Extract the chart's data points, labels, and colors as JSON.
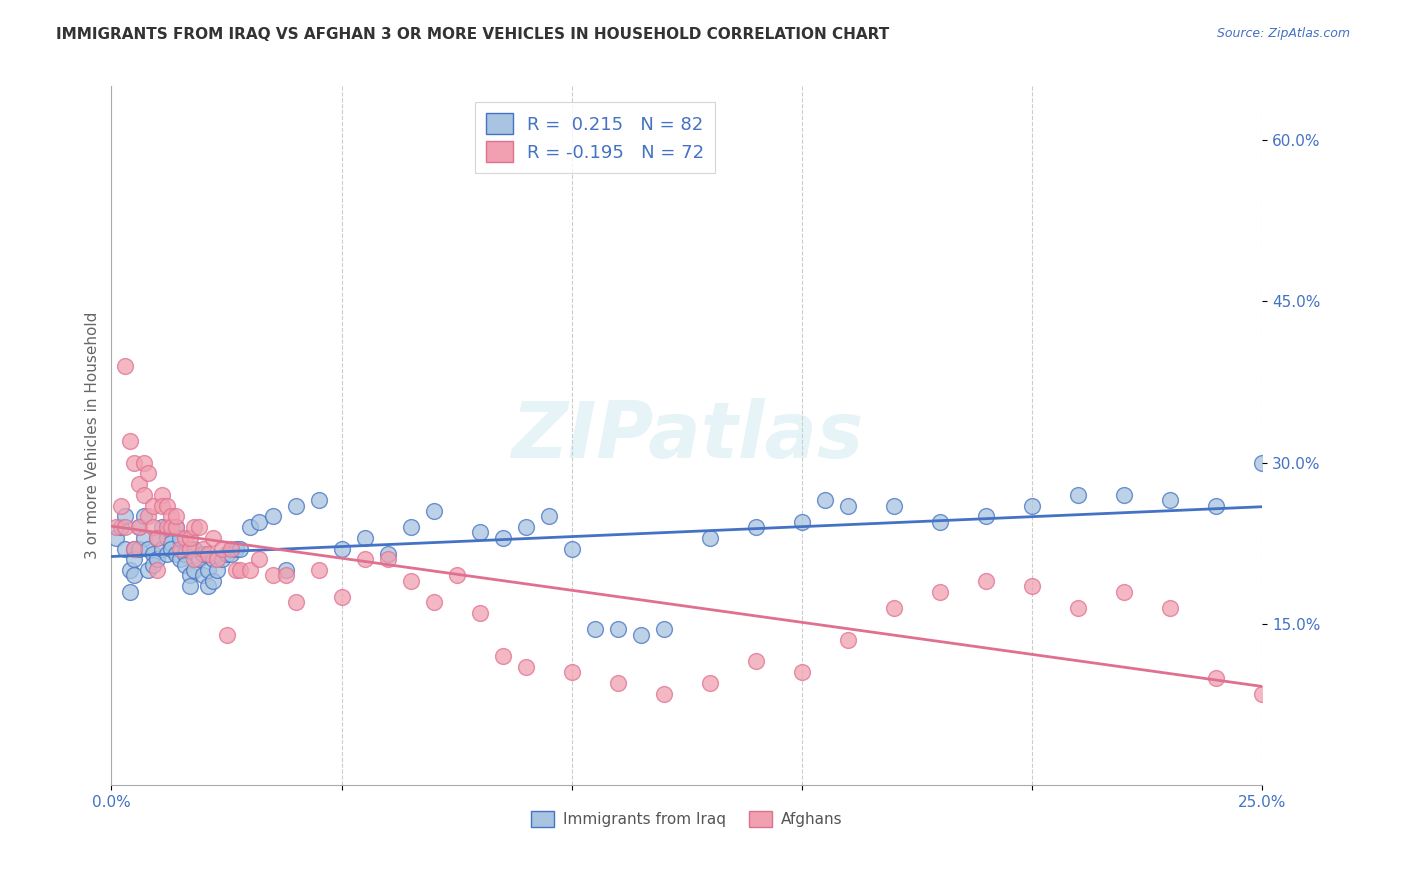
{
  "title": "IMMIGRANTS FROM IRAQ VS AFGHAN 3 OR MORE VEHICLES IN HOUSEHOLD CORRELATION CHART",
  "source": "Source: ZipAtlas.com",
  "ylabel_left": "3 or more Vehicles in Household",
  "xmin": 0.0,
  "xmax": 0.25,
  "ymin": 0.0,
  "ymax": 0.65,
  "right_yticks": [
    0.15,
    0.3,
    0.45,
    0.6
  ],
  "right_yticklabels": [
    "15.0%",
    "30.0%",
    "45.0%",
    "60.0%"
  ],
  "bottom_xticks": [
    0.0,
    0.05,
    0.1,
    0.15,
    0.2,
    0.25
  ],
  "bottom_xticklabels": [
    "0.0%",
    "",
    "",
    "",
    "",
    "25.0%"
  ],
  "legend_iraq_label": "R =  0.215   N = 82",
  "legend_afghan_label": "R = -0.195   N = 72",
  "iraq_color": "#a8c4e0",
  "afghan_color": "#f0a0b0",
  "iraq_line_color": "#4472c4",
  "afghan_line_color": "#e07090",
  "iraq_scatter_x": [
    0.001,
    0.002,
    0.003,
    0.003,
    0.004,
    0.004,
    0.005,
    0.005,
    0.005,
    0.006,
    0.006,
    0.007,
    0.007,
    0.008,
    0.008,
    0.009,
    0.009,
    0.01,
    0.01,
    0.011,
    0.011,
    0.012,
    0.012,
    0.013,
    0.013,
    0.014,
    0.014,
    0.015,
    0.015,
    0.016,
    0.016,
    0.017,
    0.017,
    0.018,
    0.018,
    0.019,
    0.02,
    0.02,
    0.021,
    0.021,
    0.022,
    0.022,
    0.023,
    0.024,
    0.025,
    0.026,
    0.027,
    0.028,
    0.03,
    0.032,
    0.035,
    0.038,
    0.04,
    0.045,
    0.05,
    0.055,
    0.06,
    0.065,
    0.07,
    0.08,
    0.085,
    0.09,
    0.095,
    0.1,
    0.105,
    0.11,
    0.115,
    0.12,
    0.13,
    0.14,
    0.15,
    0.155,
    0.16,
    0.17,
    0.18,
    0.19,
    0.2,
    0.21,
    0.22,
    0.23,
    0.24,
    0.25
  ],
  "iraq_scatter_y": [
    0.23,
    0.24,
    0.25,
    0.22,
    0.2,
    0.18,
    0.22,
    0.21,
    0.195,
    0.24,
    0.22,
    0.23,
    0.25,
    0.2,
    0.22,
    0.215,
    0.205,
    0.23,
    0.21,
    0.24,
    0.22,
    0.215,
    0.23,
    0.225,
    0.22,
    0.24,
    0.215,
    0.23,
    0.21,
    0.215,
    0.205,
    0.195,
    0.185,
    0.22,
    0.2,
    0.21,
    0.215,
    0.195,
    0.2,
    0.185,
    0.19,
    0.21,
    0.2,
    0.21,
    0.215,
    0.215,
    0.22,
    0.22,
    0.24,
    0.245,
    0.25,
    0.2,
    0.26,
    0.265,
    0.22,
    0.23,
    0.215,
    0.24,
    0.255,
    0.235,
    0.23,
    0.24,
    0.25,
    0.22,
    0.145,
    0.145,
    0.14,
    0.145,
    0.23,
    0.24,
    0.245,
    0.265,
    0.26,
    0.26,
    0.245,
    0.25,
    0.26,
    0.27,
    0.27,
    0.265,
    0.26,
    0.3
  ],
  "afghan_scatter_x": [
    0.001,
    0.002,
    0.003,
    0.003,
    0.004,
    0.005,
    0.005,
    0.006,
    0.006,
    0.007,
    0.007,
    0.008,
    0.008,
    0.009,
    0.009,
    0.01,
    0.01,
    0.011,
    0.011,
    0.012,
    0.012,
    0.013,
    0.013,
    0.014,
    0.014,
    0.015,
    0.016,
    0.017,
    0.017,
    0.018,
    0.018,
    0.019,
    0.02,
    0.021,
    0.022,
    0.023,
    0.024,
    0.025,
    0.026,
    0.027,
    0.028,
    0.03,
    0.032,
    0.035,
    0.038,
    0.04,
    0.045,
    0.05,
    0.055,
    0.06,
    0.065,
    0.07,
    0.075,
    0.08,
    0.085,
    0.09,
    0.1,
    0.11,
    0.12,
    0.13,
    0.14,
    0.15,
    0.16,
    0.17,
    0.18,
    0.19,
    0.2,
    0.21,
    0.22,
    0.23,
    0.24,
    0.25
  ],
  "afghan_scatter_y": [
    0.24,
    0.26,
    0.39,
    0.24,
    0.32,
    0.3,
    0.22,
    0.28,
    0.24,
    0.27,
    0.3,
    0.29,
    0.25,
    0.26,
    0.24,
    0.23,
    0.2,
    0.27,
    0.26,
    0.26,
    0.24,
    0.25,
    0.24,
    0.24,
    0.25,
    0.22,
    0.23,
    0.22,
    0.23,
    0.21,
    0.24,
    0.24,
    0.22,
    0.215,
    0.23,
    0.21,
    0.22,
    0.14,
    0.22,
    0.2,
    0.2,
    0.2,
    0.21,
    0.195,
    0.195,
    0.17,
    0.2,
    0.175,
    0.21,
    0.21,
    0.19,
    0.17,
    0.195,
    0.16,
    0.12,
    0.11,
    0.105,
    0.095,
    0.085,
    0.095,
    0.115,
    0.105,
    0.135,
    0.165,
    0.18,
    0.19,
    0.185,
    0.165,
    0.18,
    0.165,
    0.1,
    0.085
  ],
  "watermark": "ZIPatlas",
  "background_color": "#ffffff",
  "grid_color": "#cccccc",
  "legend_label_iraq": "Immigrants from Iraq",
  "legend_label_afghan": "Afghans"
}
